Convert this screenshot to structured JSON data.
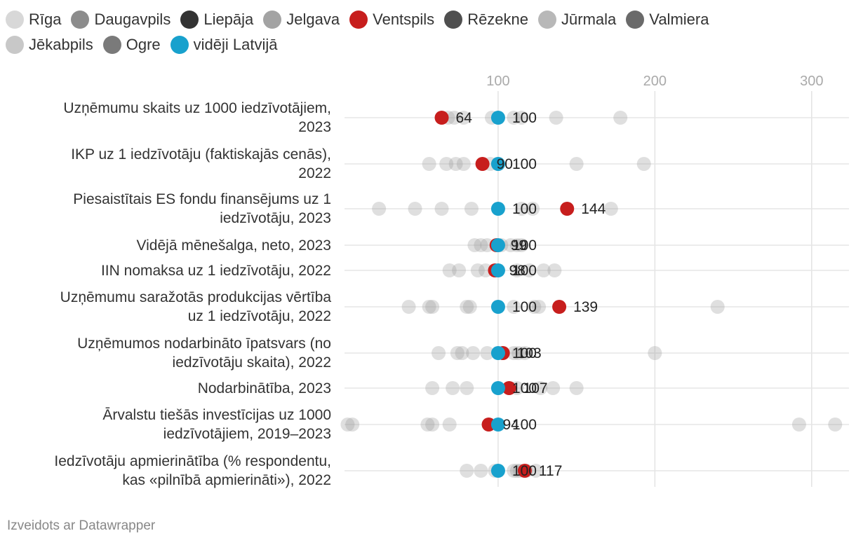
{
  "chart_data": {
    "type": "scatter",
    "subtype": "dot-plot",
    "legend": [
      {
        "name": "Rīga",
        "color": "#d8d8d8"
      },
      {
        "name": "Daugavpils",
        "color": "#8c8c8c"
      },
      {
        "name": "Liepāja",
        "color": "#333333"
      },
      {
        "name": "Jelgava",
        "color": "#a3a3a3"
      },
      {
        "name": "Ventspils",
        "color": "#c71e1d"
      },
      {
        "name": "Rēzekne",
        "color": "#4f4f4f"
      },
      {
        "name": "Jūrmala",
        "color": "#b8b8b8"
      },
      {
        "name": "Valmiera",
        "color": "#6a6a6a"
      },
      {
        "name": "Jēkabpils",
        "color": "#c8c8c8"
      },
      {
        "name": "Ogre",
        "color": "#7a7a7a"
      },
      {
        "name": "vidēji Latvijā",
        "color": "#18a1cd"
      }
    ],
    "axis": {
      "ticks": [
        100,
        200,
        300
      ],
      "range": [
        2,
        318
      ]
    },
    "rows": [
      {
        "label": [
          "Uzņēmumu skaits uz 1000 iedzīvotājiem,",
          "2023"
        ],
        "grey": [
          68,
          72,
          78,
          96,
          110,
          115,
          137,
          178
        ],
        "ventspils": 64,
        "average": 100,
        "value_labels": [
          "64",
          "100"
        ]
      },
      {
        "label": [
          "IKP uz 1 iedzīvotāju (faktiskajās cenās),",
          "2022"
        ],
        "grey": [
          56,
          67,
          73,
          78,
          95,
          100,
          150,
          193
        ],
        "ventspils": 90,
        "average": 100,
        "value_labels": [
          "90",
          "100"
        ]
      },
      {
        "label": [
          "Piesaistītais ES fondu finansējums uz 1",
          "iedzīvotāju, 2023"
        ],
        "grey": [
          24,
          47,
          64,
          83,
          115,
          122,
          172
        ],
        "ventspils": 144,
        "average": 100,
        "value_labels": [
          "144",
          "100"
        ]
      },
      {
        "label": [
          "Vidējā mēnešalga, neto, 2023"
        ],
        "grey": [
          85,
          89,
          93,
          102,
          108,
          112,
          115
        ],
        "ventspils": 99,
        "average": 100,
        "value_labels": [
          "99",
          "100"
        ]
      },
      {
        "label": [
          "IIN nomaksa uz 1 iedzīvotāju, 2022"
        ],
        "grey": [
          69,
          75,
          87,
          92,
          112,
          120,
          129,
          136
        ],
        "ventspils": 98,
        "average": 100,
        "value_labels": [
          "98",
          "100"
        ]
      },
      {
        "label": [
          "Uzņēmumu saražotās produkcijas vērtība",
          "uz 1 iedzīvotāju, 2022"
        ],
        "grey": [
          43,
          56,
          58,
          80,
          82,
          110,
          123,
          126,
          240
        ],
        "ventspils": 139,
        "average": 100,
        "value_labels": [
          "139",
          "100"
        ]
      },
      {
        "label": [
          "Uzņēmumos nodarbināto īpatsvars (no",
          "iedzīvotāju skaita), 2022"
        ],
        "grey": [
          62,
          74,
          77,
          84,
          93,
          110,
          113,
          117,
          200
        ],
        "ventspils": 103,
        "average": 100,
        "value_labels": [
          "103",
          "100"
        ]
      },
      {
        "label": [
          "Nodarbinātība, 2023"
        ],
        "grey": [
          58,
          71,
          80,
          112,
          127,
          135,
          150
        ],
        "ventspils": 107,
        "average": 100,
        "value_labels": [
          "107",
          "100"
        ]
      },
      {
        "label": [
          "Ārvalstu tiešās investīcijas uz 1000",
          "iedzīvotājiem, 2019–2023"
        ],
        "grey": [
          4,
          7,
          55,
          58,
          69,
          292,
          315
        ],
        "ventspils": 94,
        "average": 100,
        "value_labels": [
          "94",
          "100"
        ]
      },
      {
        "label": [
          "Iedzīvotāju apmierinātība (% respondentu,",
          "kas «pilnībā apmierināti»), 2022"
        ],
        "grey": [
          80,
          89,
          98,
          110,
          112,
          114,
          118,
          124
        ],
        "ventspils": 117,
        "average": 100,
        "value_labels": [
          "117",
          "100"
        ]
      }
    ],
    "footer": "Izveidots ar Datawrapper"
  }
}
